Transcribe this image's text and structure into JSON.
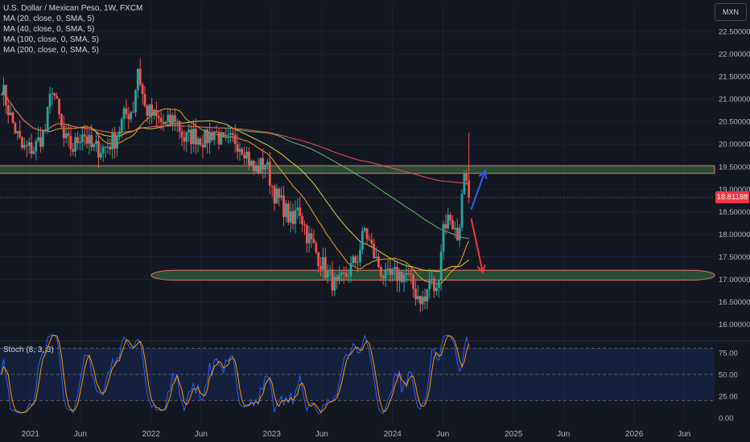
{
  "header": {
    "title": "U.S. Dollar / Mexican Peso, 1W, FXCM",
    "ma_lines": [
      "MA (20, close, 0, SMA, 5)",
      "MA (40, close, 0, SMA, 5)",
      "MA (100, close, 0, SMA, 5)",
      "MA (200, close, 0, SMA, 5)"
    ]
  },
  "unit_label": "MXN",
  "last_price_label": "18.81188",
  "stoch_label": "Stoch (8, 3, 3)",
  "colors": {
    "background": "#131722",
    "up": "#26a69a",
    "down": "#ef5350",
    "ma20": "#f7a21b",
    "ma40": "#e0d23c",
    "ma100": "#66bb6a",
    "ma200": "#ef5350",
    "stoch_k": "#2962ff",
    "stoch_d": "#ff9800",
    "arrow_up": "#2962ff",
    "arrow_down": "#f23645"
  },
  "chart_data": [
    {
      "type": "candlestick",
      "title": "U.S. Dollar / Mexican Peso, 1W, FXCM",
      "x_tick_labels": [
        "2021",
        "Jun",
        "2022",
        "Jun",
        "2023",
        "Jun",
        "2024",
        "Jun",
        "2025",
        "Jun",
        "2026",
        "Jun"
      ],
      "y_tick_labels": [
        "22.50000",
        "22.00000",
        "21.50000",
        "21.00000",
        "20.50000",
        "20.00000",
        "19.50000",
        "19.00000",
        "18.50000",
        "18.00000",
        "17.50000",
        "17.00000",
        "16.50000",
        "16.00000"
      ],
      "ylim": [
        15.85,
        22.75
      ],
      "last_price": 18.81188,
      "date_range": [
        "2020-10",
        "2026-09"
      ],
      "close_path": [
        [
          "2020-10-05",
          21.3
        ],
        [
          "2020-11-02",
          20.6
        ],
        [
          "2020-12-07",
          19.9
        ],
        [
          "2021-01-11",
          19.9
        ],
        [
          "2021-02-15",
          20.3
        ],
        [
          "2021-03-08",
          21.3
        ],
        [
          "2021-04-12",
          20.1
        ],
        [
          "2021-05-10",
          19.9
        ],
        [
          "2021-06-07",
          20.3
        ],
        [
          "2021-07-05",
          19.9
        ],
        [
          "2021-08-09",
          19.9
        ],
        [
          "2021-09-13",
          20.1
        ],
        [
          "2021-10-11",
          20.6
        ],
        [
          "2021-11-08",
          20.8
        ],
        [
          "2021-11-22",
          21.7
        ],
        [
          "2021-12-13",
          20.8
        ],
        [
          "2022-01-10",
          20.6
        ],
        [
          "2022-02-14",
          20.4
        ],
        [
          "2022-03-14",
          20.6
        ],
        [
          "2022-04-11",
          20.1
        ],
        [
          "2022-05-09",
          20.2
        ],
        [
          "2022-06-13",
          20.1
        ],
        [
          "2022-07-11",
          20.3
        ],
        [
          "2022-08-08",
          20.0
        ],
        [
          "2022-09-12",
          20.1
        ],
        [
          "2022-10-10",
          19.9
        ],
        [
          "2022-11-07",
          19.4
        ],
        [
          "2022-12-12",
          19.6
        ],
        [
          "2023-01-09",
          18.9
        ],
        [
          "2023-02-06",
          18.6
        ],
        [
          "2023-03-06",
          18.2
        ],
        [
          "2023-03-20",
          18.7
        ],
        [
          "2023-04-17",
          18.0
        ],
        [
          "2023-05-15",
          17.6
        ],
        [
          "2023-06-12",
          17.2
        ],
        [
          "2023-07-17",
          16.8
        ],
        [
          "2023-08-14",
          17.1
        ],
        [
          "2023-09-18",
          17.5
        ],
        [
          "2023-10-09",
          18.1
        ],
        [
          "2023-11-13",
          17.4
        ],
        [
          "2023-12-11",
          17.0
        ],
        [
          "2024-01-15",
          17.1
        ],
        [
          "2024-02-12",
          17.1
        ],
        [
          "2024-03-11",
          16.7
        ],
        [
          "2024-04-08",
          16.5
        ],
        [
          "2024-04-22",
          17.0
        ],
        [
          "2024-05-13",
          16.7
        ],
        [
          "2024-06-03",
          18.2
        ],
        [
          "2024-06-24",
          18.4
        ],
        [
          "2024-07-15",
          17.9
        ],
        [
          "2024-08-05",
          19.2
        ],
        [
          "2024-08-19",
          18.8
        ]
      ],
      "moving_averages": [
        {
          "name": "MA (20, close, 0, SMA, 5)",
          "period": 20
        },
        {
          "name": "MA (40, close, 0, SMA, 5)",
          "period": 40
        },
        {
          "name": "MA (100, close, 0, SMA, 5)",
          "period": 100
        },
        {
          "name": "MA (200, close, 0, SMA, 5)",
          "period": 200
        }
      ],
      "annotations": {
        "resistance_zone": [
          19.35,
          19.52
        ],
        "support_zone": [
          16.98,
          17.2
        ],
        "arrow_up": {
          "from": [
            "2024-08-26",
            18.55
          ],
          "to": [
            "2024-10-07",
            19.4
          ]
        },
        "arrow_down": {
          "from": [
            "2024-08-26",
            18.35
          ],
          "to": [
            "2024-09-30",
            17.15
          ]
        }
      }
    },
    {
      "type": "line",
      "title": "Stoch (8, 3, 3)",
      "y_tick_labels": [
        "75.00",
        "50.00",
        "25.00",
        "0.00"
      ],
      "ylim": [
        0,
        85
      ],
      "bands": [
        20,
        80
      ],
      "series": [
        {
          "name": "%K",
          "period": 8,
          "smooth": 3
        },
        {
          "name": "%D",
          "period": 3
        }
      ]
    }
  ]
}
